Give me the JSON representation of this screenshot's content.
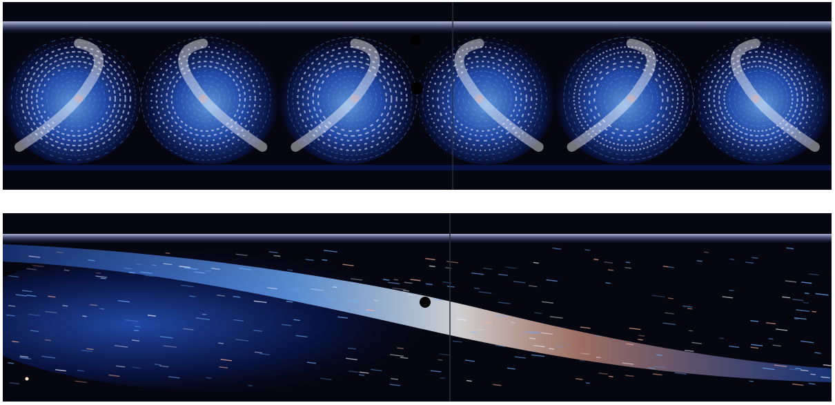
{
  "figure": {
    "panels": [
      {
        "id": "top",
        "description_label": "",
        "roll_cells": 6,
        "colors": {
          "background": "#05060f",
          "dark_blue": "#0b1a5e",
          "mid_blue": "#2a5ed6",
          "bright_blue": "#6fb0ff",
          "white_streak": "#f4f1ff",
          "warm_highlight": "#ffb39a"
        }
      },
      {
        "id": "bottom",
        "description_label": "",
        "roll_cells": 1,
        "colors": {
          "background": "#05060f",
          "dark_blue": "#0b1a5e",
          "mid_blue": "#2a5ed6",
          "bright_blue": "#6fb0ff",
          "white_streak": "#f4f1ff",
          "warm_highlight": "#ffb39a"
        }
      }
    ]
  }
}
